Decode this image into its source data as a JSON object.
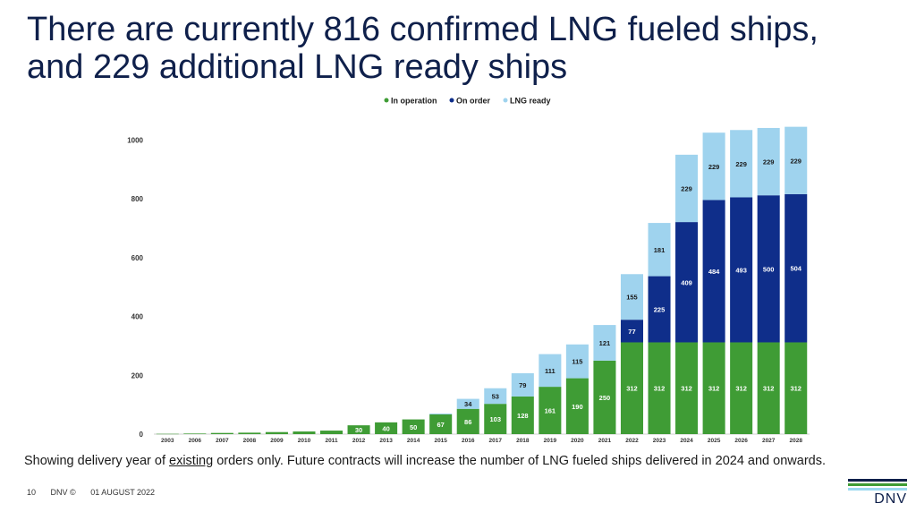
{
  "slide": {
    "title_line1": "There are currently 816 confirmed LNG fueled ships,",
    "title_line2": "and 229 additional LNG ready ships",
    "footnote_before": "Showing delivery year of ",
    "footnote_underlined": "existing",
    "footnote_after": " orders only. Future contracts will increase the number of LNG fueled ships delivered in 2024 and onwards.",
    "footer": {
      "page": "10",
      "company": "DNV ©",
      "date": "01 AUGUST 2022"
    },
    "logo": {
      "wordmark": "DNV",
      "colors": [
        "#0f204b",
        "#3f9c35",
        "#99d9f0"
      ]
    }
  },
  "chart_data": {
    "type": "bar",
    "stacked": true,
    "categories": [
      "2003",
      "2006",
      "2007",
      "2008",
      "2009",
      "2010",
      "2011",
      "2012",
      "2013",
      "2014",
      "2015",
      "2016",
      "2017",
      "2018",
      "2019",
      "2020",
      "2021",
      "2022",
      "2023",
      "2024",
      "2025",
      "2026",
      "2027",
      "2028"
    ],
    "series": [
      {
        "name": "In operation",
        "color": "#3f9c35",
        "values": [
          1,
          2,
          4,
          5,
          7,
          9,
          12,
          30,
          40,
          50,
          67,
          86,
          103,
          128,
          161,
          190,
          250,
          312,
          312,
          312,
          312,
          312,
          312,
          312
        ]
      },
      {
        "name": "On order",
        "color": "#0f2e8a",
        "values": [
          0,
          0,
          0,
          0,
          0,
          0,
          0,
          0,
          0,
          0,
          0,
          0,
          0,
          0,
          0,
          0,
          0,
          77,
          225,
          409,
          484,
          493,
          500,
          504
        ]
      },
      {
        "name": "LNG ready",
        "color": "#9fd3ee",
        "values": [
          0,
          0,
          0,
          0,
          0,
          0,
          0,
          0,
          0,
          0,
          3,
          34,
          53,
          79,
          111,
          115,
          121,
          155,
          181,
          229,
          229,
          229,
          229,
          229
        ]
      }
    ],
    "label_threshold": 30,
    "ylim": [
      0,
      1050
    ],
    "yticks": [
      0,
      200,
      400,
      600,
      800,
      1000
    ],
    "legend_position": "top",
    "grid": false,
    "xlabel": "",
    "ylabel": ""
  }
}
